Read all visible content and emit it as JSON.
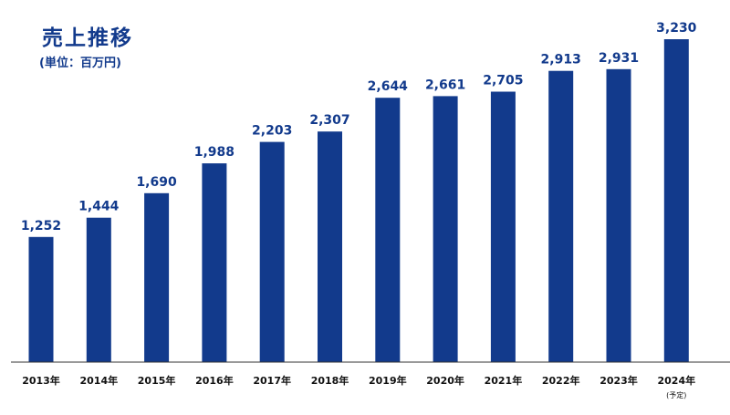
{
  "header": {
    "title": "売上推移",
    "unit": "(単位：百万円)"
  },
  "colors": {
    "bar": "#123a8c",
    "value_label": "#123a8c",
    "axis": "#333333",
    "tick_label": "#111111"
  },
  "chart_data": {
    "type": "bar",
    "title": "売上推移",
    "unit_label": "(単位：百万円)",
    "categories": [
      "2013年",
      "2014年",
      "2015年",
      "2016年",
      "2017年",
      "2018年",
      "2019年",
      "2020年",
      "2021年",
      "2022年",
      "2023年",
      "2024年"
    ],
    "category_notes": [
      "",
      "",
      "",
      "",
      "",
      "",
      "",
      "",
      "",
      "",
      "",
      "(予定)"
    ],
    "values": [
      1252,
      1444,
      1690,
      1988,
      2203,
      2307,
      2644,
      2661,
      2705,
      2913,
      2931,
      3230
    ],
    "value_labels": [
      "1,252",
      "1,444",
      "1,690",
      "1,988",
      "2,203",
      "2,307",
      "2,644",
      "2,661",
      "2,705",
      "2,913",
      "2,931",
      "3,230"
    ],
    "xlabel": "",
    "ylabel": "",
    "ylim": [
      0,
      3230
    ],
    "grid": false,
    "legend": "none"
  }
}
